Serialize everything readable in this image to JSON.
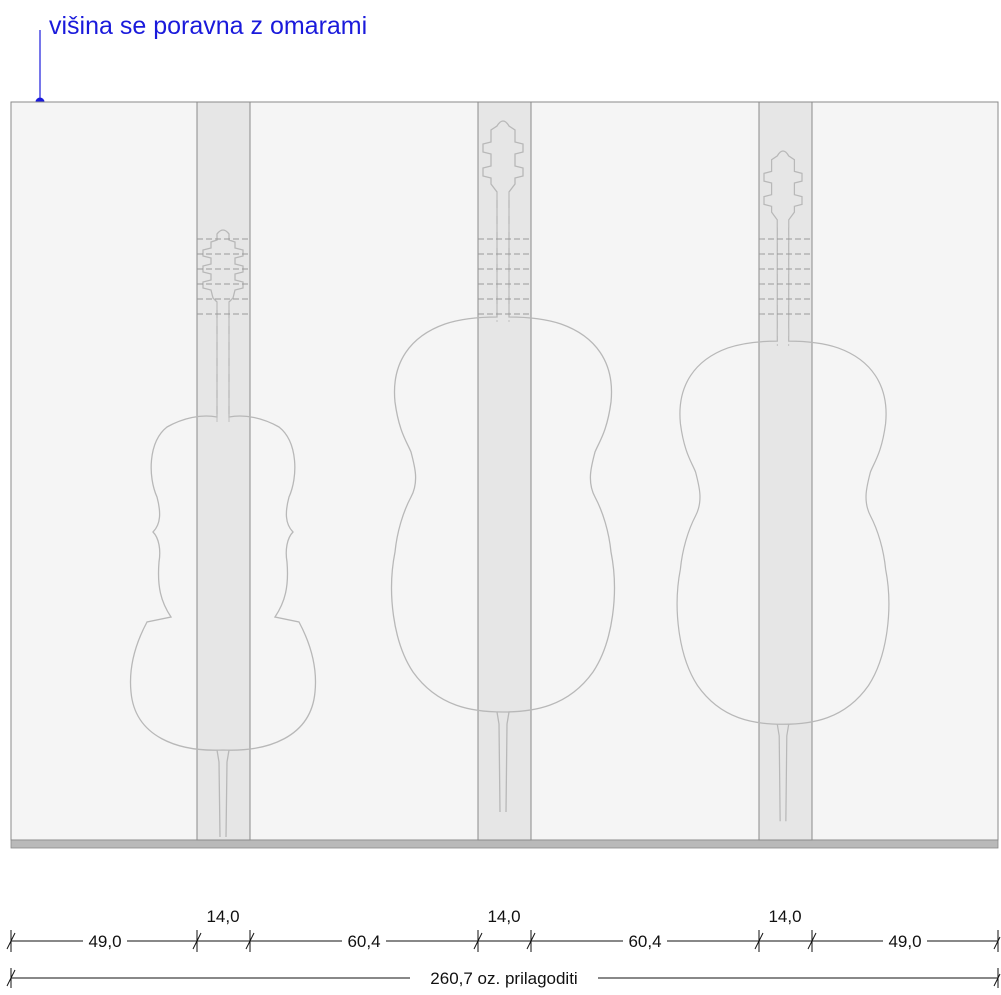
{
  "note": {
    "text": "višina se poravna z omarami",
    "color": "#1a1adb"
  },
  "colors": {
    "panel_fill": "#f5f5f5",
    "panel_stroke": "#8a8a8a",
    "strip_fill": "#e6e6e6",
    "base_fill": "#b9b9b9",
    "dimension_line": "#111111"
  },
  "dimensions": {
    "segments": [
      "49,0",
      "14,0",
      "60,4",
      "14,0",
      "60,4",
      "14,0",
      "49,0"
    ],
    "total": "260,7 oz. prilagoditi"
  },
  "instruments": [
    {
      "name": "cello-outline",
      "icon": "cello-icon"
    },
    {
      "name": "guitar-outline",
      "icon": "guitar-icon"
    },
    {
      "name": "guitar-outline",
      "icon": "guitar-icon"
    }
  ]
}
